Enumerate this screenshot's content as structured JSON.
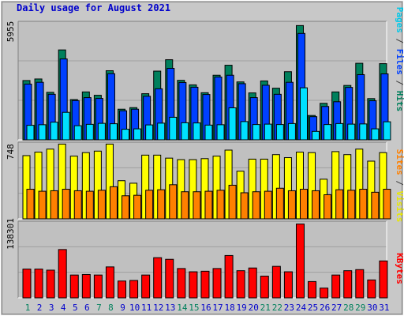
{
  "title": "Daily usage for August 2021",
  "panels": {
    "top": {
      "max_label": "5955",
      "legend": [
        {
          "text": "Pages",
          "color": "#00c8e8"
        },
        {
          "text": " / ",
          "color": "#404040"
        },
        {
          "text": "Files",
          "color": "#0040ff"
        },
        {
          "text": " / ",
          "color": "#404040"
        },
        {
          "text": "Hits",
          "color": "#00805c"
        }
      ]
    },
    "middle": {
      "max_label": "748",
      "legend": [
        {
          "text": "Sites",
          "color": "#ff8000"
        },
        {
          "text": " / ",
          "color": "#404040"
        },
        {
          "text": "Visits",
          "color": "#e8e800"
        }
      ]
    },
    "bottom": {
      "max_label": "138301",
      "legend": [
        {
          "text": "KBytes",
          "color": "#ff0000"
        }
      ]
    }
  },
  "colors": {
    "background": "#c8c8c8",
    "plot_background": "#c0c0c0",
    "hits": "#00805c",
    "files": "#0040ff",
    "pages": "#00e0ff",
    "visits": "#ffff00",
    "sites": "#ff8000",
    "kbytes": "#ff0000",
    "weekday_label": "#0000cc",
    "weekend_label": "#00805c"
  },
  "chart_data": [
    {
      "type": "bar",
      "title": "Daily usage for August 2021",
      "categories": [
        "1",
        "2",
        "3",
        "4",
        "5",
        "6",
        "7",
        "8",
        "9",
        "10",
        "11",
        "12",
        "13",
        "14",
        "15",
        "16",
        "17",
        "18",
        "19",
        "20",
        "21",
        "22",
        "23",
        "24",
        "25",
        "26",
        "27",
        "28",
        "29",
        "30",
        "31"
      ],
      "weekend_days": [
        "1",
        "7",
        "8",
        "14",
        "15",
        "21",
        "22",
        "28",
        "29"
      ],
      "ylim": [
        0,
        5955
      ],
      "series": [
        {
          "name": "Hits",
          "values": [
            3020,
            3100,
            2420,
            4580,
            2050,
            2440,
            2270,
            3520,
            1560,
            1640,
            2350,
            3500,
            4080,
            3030,
            2800,
            2400,
            3290,
            3800,
            2950,
            2390,
            3000,
            2630,
            3470,
            5820,
            1240,
            1860,
            2440,
            2770,
            3900,
            2100,
            3880
          ]
        },
        {
          "name": "Files",
          "values": [
            2840,
            2930,
            2320,
            4120,
            2000,
            2150,
            2110,
            3370,
            1480,
            1560,
            2220,
            2600,
            3640,
            2920,
            2680,
            2310,
            3200,
            3290,
            2860,
            2150,
            2780,
            2320,
            2930,
            5420,
            1180,
            1700,
            1940,
            2670,
            3320,
            1990,
            3360
          ]
        },
        {
          "name": "Pages",
          "values": [
            740,
            770,
            900,
            1400,
            720,
            790,
            840,
            820,
            540,
            560,
            760,
            850,
            1150,
            870,
            860,
            750,
            770,
            1630,
            930,
            780,
            800,
            780,
            830,
            2650,
            430,
            780,
            830,
            800,
            810,
            560,
            920
          ]
        }
      ]
    },
    {
      "type": "bar",
      "categories": [
        "1",
        "2",
        "3",
        "4",
        "5",
        "6",
        "7",
        "8",
        "9",
        "10",
        "11",
        "12",
        "13",
        "14",
        "15",
        "16",
        "17",
        "18",
        "19",
        "20",
        "21",
        "22",
        "23",
        "24",
        "25",
        "26",
        "27",
        "28",
        "29",
        "30",
        "31"
      ],
      "ylim": [
        0,
        748
      ],
      "series": [
        {
          "name": "Visits",
          "values": [
            630,
            665,
            695,
            745,
            625,
            660,
            675,
            745,
            380,
            355,
            635,
            635,
            605,
            590,
            590,
            600,
            625,
            685,
            475,
            595,
            595,
            640,
            610,
            665,
            660,
            395,
            670,
            640,
            695,
            575,
            660
          ]
        },
        {
          "name": "Sites",
          "values": [
            295,
            275,
            280,
            295,
            280,
            275,
            285,
            320,
            230,
            235,
            285,
            290,
            340,
            270,
            270,
            275,
            285,
            335,
            260,
            270,
            275,
            305,
            280,
            295,
            280,
            240,
            290,
            285,
            295,
            265,
            295
          ]
        }
      ]
    },
    {
      "type": "bar",
      "categories": [
        "1",
        "2",
        "3",
        "4",
        "5",
        "6",
        "7",
        "8",
        "9",
        "10",
        "11",
        "12",
        "13",
        "14",
        "15",
        "16",
        "17",
        "18",
        "19",
        "20",
        "21",
        "22",
        "23",
        "24",
        "25",
        "26",
        "27",
        "28",
        "29",
        "30",
        "31"
      ],
      "ylim": [
        0,
        138301
      ],
      "series": [
        {
          "name": "KBytes",
          "values": [
            53000,
            53000,
            51000,
            89000,
            42000,
            43000,
            42000,
            57000,
            31000,
            32000,
            42000,
            74000,
            71000,
            54000,
            48000,
            49000,
            54000,
            78000,
            50000,
            55000,
            40000,
            58000,
            48000,
            136000,
            30000,
            18000,
            42000,
            50000,
            52000,
            33000,
            68000
          ]
        }
      ]
    }
  ]
}
